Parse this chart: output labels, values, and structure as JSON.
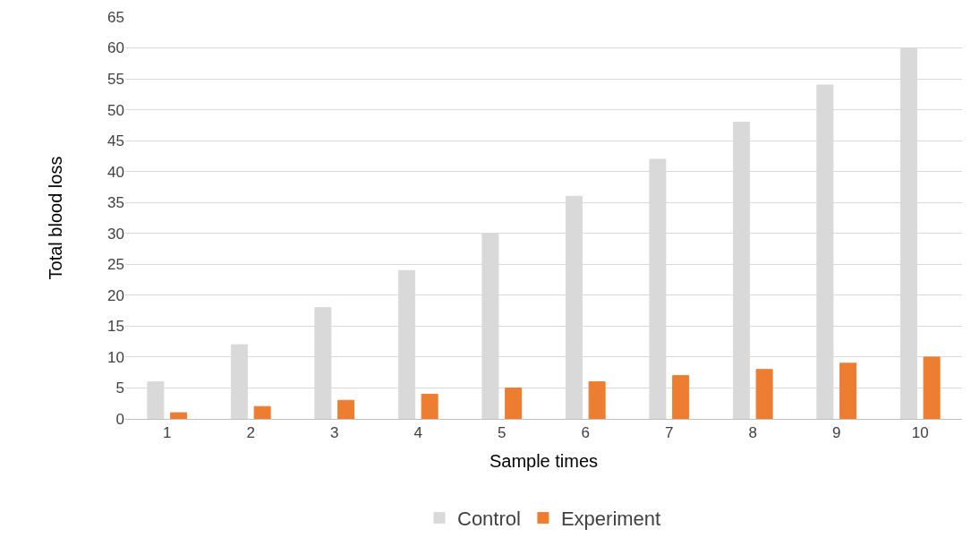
{
  "chart_data": {
    "type": "bar",
    "xlabel": "Sample times",
    "ylabel": "Total blood loss",
    "categories": [
      "1",
      "2",
      "3",
      "4",
      "5",
      "6",
      "7",
      "8",
      "9",
      "10"
    ],
    "series": [
      {
        "name": "Control",
        "color": "#d9d9d9",
        "values": [
          6,
          12,
          18,
          24,
          30,
          36,
          42,
          48,
          54,
          60
        ]
      },
      {
        "name": "Experiment",
        "color": "#ed7d31",
        "values": [
          1,
          2,
          3,
          4,
          5,
          6,
          7,
          8,
          9,
          10
        ]
      }
    ],
    "ylim": [
      0,
      65
    ],
    "yticks": [
      0,
      5,
      10,
      15,
      20,
      25,
      30,
      35,
      40,
      45,
      50,
      55,
      60,
      65
    ],
    "grid": "y",
    "legend": "bottom"
  }
}
